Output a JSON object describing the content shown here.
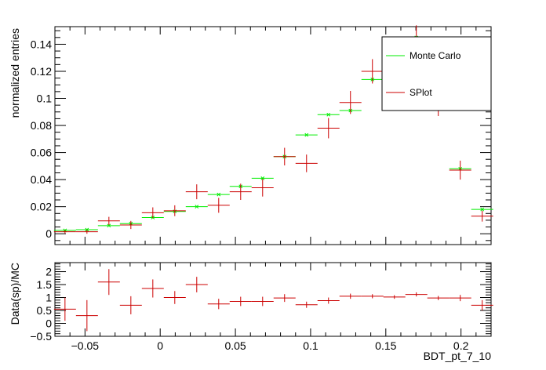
{
  "colors": {
    "mc": "#00ee00",
    "splot": "#cc0000",
    "axis": "#000000",
    "background": "#ffffff"
  },
  "chart_data": [
    {
      "type": "scatter",
      "panel": "main",
      "xlabel": "",
      "ylabel": "normalized entries",
      "xlim": [
        -0.07,
        0.22
      ],
      "ylim": [
        -0.008,
        0.153
      ],
      "x_ticks": [
        -0.05,
        0,
        0.05,
        0.1,
        0.15,
        0.2
      ],
      "x_tick_labels": [
        "",
        "",
        "",
        "",
        "",
        ""
      ],
      "y_ticks": [
        0,
        0.02,
        0.04,
        0.06,
        0.08,
        0.1,
        0.12,
        0.14
      ],
      "y_tick_labels": [
        "0",
        "0.02",
        "0.04",
        "0.06",
        "0.08",
        "0.1",
        "0.12",
        "0.14"
      ],
      "bin_half_width": 0.0073,
      "legend": {
        "position": "top-right",
        "entries": [
          "Monte Carlo",
          "SPlot"
        ]
      },
      "series": [
        {
          "name": "Monte Carlo",
          "color_key": "mc",
          "x": [
            -0.0633,
            -0.0487,
            -0.0341,
            -0.0195,
            -0.0049,
            0.0097,
            0.0243,
            0.0389,
            0.0535,
            0.0681,
            0.0827,
            0.0973,
            0.1119,
            0.1265,
            0.1411,
            0.1557,
            0.1703,
            0.1849,
            0.1995,
            0.2141
          ],
          "y": [
            0.0025,
            0.003,
            0.006,
            0.0075,
            0.012,
            0.0165,
            0.02,
            0.029,
            0.035,
            0.041,
            0.057,
            0.073,
            0.088,
            0.091,
            0.114,
            0.135,
            0.145,
            0.095,
            0.048,
            0.018
          ]
        },
        {
          "name": "SPlot",
          "color_key": "splot",
          "x": [
            -0.0633,
            -0.0487,
            -0.0341,
            -0.0195,
            -0.0049,
            0.0097,
            0.0243,
            0.0389,
            0.0535,
            0.0681,
            0.0827,
            0.0973,
            0.1119,
            0.1265,
            0.1411,
            0.1557,
            0.1703,
            0.1849,
            0.1995,
            0.2141
          ],
          "y": [
            0.0015,
            0.0015,
            0.0095,
            0.0065,
            0.0155,
            0.017,
            0.031,
            0.021,
            0.031,
            0.034,
            0.057,
            0.052,
            0.078,
            0.097,
            0.12,
            0.135,
            0.145,
            0.095,
            0.047,
            0.013
          ],
          "yerr": [
            0.0012,
            0.0015,
            0.003,
            0.003,
            0.004,
            0.004,
            0.0055,
            0.0055,
            0.006,
            0.0065,
            0.0065,
            0.0065,
            0.0075,
            0.0085,
            0.009,
            0.009,
            0.009,
            0.008,
            0.007,
            0.004
          ]
        }
      ]
    },
    {
      "type": "scatter",
      "panel": "ratio",
      "xlabel": "BDT_pt_7_10",
      "ylabel": "Data(sp)/MC",
      "xlim": [
        -0.07,
        0.22
      ],
      "ylim": [
        -0.5,
        2.35
      ],
      "x_ticks": [
        -0.05,
        0,
        0.05,
        0.1,
        0.15,
        0.2
      ],
      "x_tick_labels": [
        "−0.05",
        "0",
        "0.05",
        "0.1",
        "0.15",
        "0.2"
      ],
      "y_ticks": [
        -0.5,
        0,
        0.5,
        1,
        1.5,
        2
      ],
      "y_tick_labels": [
        "−0.5",
        "0",
        "0.5",
        "1",
        "1.5",
        "2"
      ],
      "bin_half_width": 0.0073,
      "series": [
        {
          "name": "Data(sp)/MC",
          "color_key": "splot",
          "x": [
            -0.0633,
            -0.0487,
            -0.0341,
            -0.0195,
            -0.0049,
            0.0097,
            0.0243,
            0.0389,
            0.0535,
            0.0681,
            0.0827,
            0.0973,
            0.1119,
            0.1265,
            0.1411,
            0.1557,
            0.1703,
            0.1849,
            0.1995,
            0.2141
          ],
          "y": [
            0.55,
            0.3,
            1.6,
            0.7,
            1.35,
            1.0,
            1.5,
            0.75,
            0.85,
            0.85,
            0.98,
            0.72,
            0.88,
            1.05,
            1.05,
            1.02,
            1.12,
            0.98,
            0.98,
            0.7
          ],
          "yerr": [
            0.45,
            0.6,
            0.5,
            0.35,
            0.35,
            0.25,
            0.3,
            0.2,
            0.18,
            0.18,
            0.15,
            0.12,
            0.12,
            0.1,
            0.08,
            0.07,
            0.08,
            0.08,
            0.12,
            0.2
          ]
        }
      ]
    }
  ]
}
